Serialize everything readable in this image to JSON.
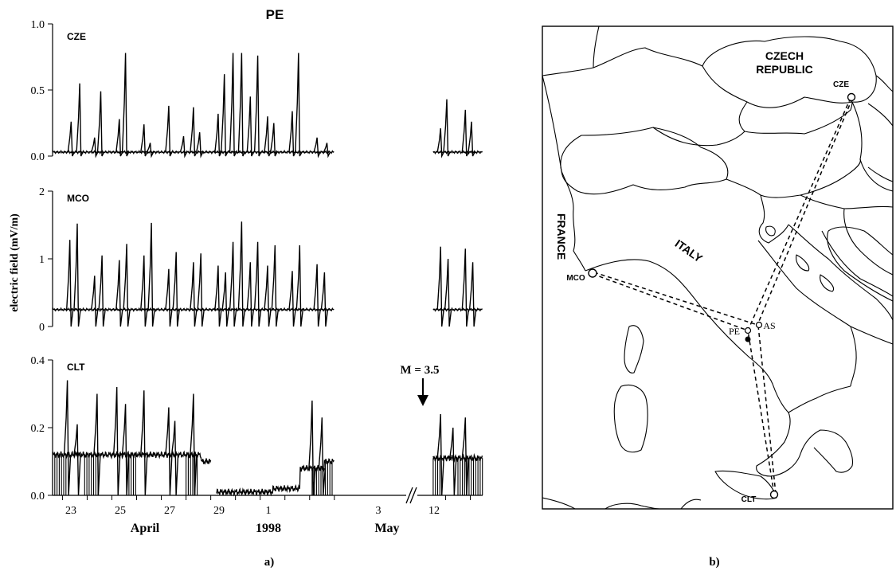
{
  "figure": {
    "panel_a_label": "a)",
    "panel_b_label": "b)"
  },
  "chart_data": [
    {
      "type": "line",
      "title": "PE",
      "ylabel": "electric field (mV/m)",
      "panels": [
        {
          "station": "CZE",
          "ylim": [
            0,
            1.0
          ],
          "ytick_labels": [
            "0.0",
            "0.5",
            "1.0"
          ],
          "baseline": 0.03,
          "spikes": [
            {
              "day": 23.35,
              "value": 0.26
            },
            {
              "day": 23.7,
              "value": 0.55
            },
            {
              "day": 24.3,
              "value": 0.14
            },
            {
              "day": 24.55,
              "value": 0.49
            },
            {
              "day": 25.3,
              "value": 0.28
            },
            {
              "day": 25.55,
              "value": 0.78
            },
            {
              "day": 26.3,
              "value": 0.24
            },
            {
              "day": 26.55,
              "value": 0.1
            },
            {
              "day": 27.3,
              "value": 0.38
            },
            {
              "day": 27.9,
              "value": 0.15
            },
            {
              "day": 28.3,
              "value": 0.37
            },
            {
              "day": 28.55,
              "value": 0.18
            },
            {
              "day": 29.3,
              "value": 0.32
            },
            {
              "day": 29.55,
              "value": 0.62
            },
            {
              "day": 29.9,
              "value": 0.78
            },
            {
              "day": 30.25,
              "value": 0.78
            },
            {
              "day": 30.6,
              "value": 0.45
            },
            {
              "day": 30.9,
              "value": 0.76
            },
            {
              "day": 31.3,
              "value": 0.3
            },
            {
              "day": 31.55,
              "value": 0.25
            },
            {
              "day": 32.3,
              "value": 0.34
            },
            {
              "day": 32.55,
              "value": 0.78
            },
            {
              "day": 33.3,
              "value": 0.14
            },
            {
              "day": 33.7,
              "value": 0.1
            },
            {
              "day": 38.3,
              "value": 0.21
            },
            {
              "day": 38.55,
              "value": 0.43
            },
            {
              "day": 39.3,
              "value": 0.35
            },
            {
              "day": 39.55,
              "value": 0.26
            }
          ]
        },
        {
          "station": "MCO",
          "ylim": [
            0,
            2
          ],
          "ytick_labels": [
            "0",
            "1",
            "2"
          ],
          "baseline": 0.25,
          "spikes": [
            {
              "day": 23.3,
              "value": 1.28
            },
            {
              "day": 23.6,
              "value": 1.52
            },
            {
              "day": 24.3,
              "value": 0.75
            },
            {
              "day": 24.6,
              "value": 1.05
            },
            {
              "day": 25.3,
              "value": 0.98
            },
            {
              "day": 25.6,
              "value": 1.22
            },
            {
              "day": 26.3,
              "value": 1.05
            },
            {
              "day": 26.6,
              "value": 1.53
            },
            {
              "day": 27.3,
              "value": 0.85
            },
            {
              "day": 27.6,
              "value": 1.1
            },
            {
              "day": 28.3,
              "value": 0.95
            },
            {
              "day": 28.6,
              "value": 1.08
            },
            {
              "day": 29.3,
              "value": 0.9
            },
            {
              "day": 29.6,
              "value": 0.8
            },
            {
              "day": 29.9,
              "value": 1.25
            },
            {
              "day": 30.25,
              "value": 1.55
            },
            {
              "day": 30.6,
              "value": 0.95
            },
            {
              "day": 30.9,
              "value": 1.25
            },
            {
              "day": 31.3,
              "value": 0.9
            },
            {
              "day": 31.6,
              "value": 1.2
            },
            {
              "day": 32.3,
              "value": 0.82
            },
            {
              "day": 32.6,
              "value": 1.2
            },
            {
              "day": 33.3,
              "value": 0.92
            },
            {
              "day": 33.6,
              "value": 0.8
            },
            {
              "day": 38.3,
              "value": 1.18
            },
            {
              "day": 38.6,
              "value": 1.0
            },
            {
              "day": 39.3,
              "value": 1.15
            },
            {
              "day": 39.6,
              "value": 0.95
            }
          ]
        },
        {
          "station": "CLT",
          "ylim": [
            0,
            0.4
          ],
          "ytick_labels": [
            "0.0",
            "0.2",
            "0.4"
          ],
          "annotation": "M = 3.5",
          "annotation_day": 11.7,
          "levels": [
            {
              "from_day": 22.6,
              "to_day": 28.6,
              "value": 0.12
            },
            {
              "from_day": 28.6,
              "to_day": 29.0,
              "value": 0.1
            },
            {
              "from_day": 29.2,
              "to_day": 31.5,
              "value": 0.01
            },
            {
              "from_day": 31.5,
              "to_day": 32.6,
              "value": 0.02
            },
            {
              "from_day": 32.6,
              "to_day": 33.6,
              "value": 0.08
            },
            {
              "from_day": 33.6,
              "to_day": 34.0,
              "value": 0.1
            },
            {
              "from_day": 38.0,
              "to_day": 40.0,
              "value": 0.11
            }
          ],
          "spikes": [
            {
              "day": 23.2,
              "value": 0.34
            },
            {
              "day": 23.6,
              "value": 0.21
            },
            {
              "day": 24.4,
              "value": 0.3
            },
            {
              "day": 25.2,
              "value": 0.32
            },
            {
              "day": 25.55,
              "value": 0.27
            },
            {
              "day": 26.3,
              "value": 0.31
            },
            {
              "day": 27.3,
              "value": 0.26
            },
            {
              "day": 27.55,
              "value": 0.22
            },
            {
              "day": 28.3,
              "value": 0.3
            },
            {
              "day": 33.1,
              "value": 0.28
            },
            {
              "day": 33.5,
              "value": 0.23
            },
            {
              "day": 38.3,
              "value": 0.24
            },
            {
              "day": 38.8,
              "value": 0.2
            },
            {
              "day": 39.3,
              "value": 0.23
            }
          ]
        }
      ],
      "x_axis": {
        "tick_labels": [
          {
            "day": 23,
            "label": "23"
          },
          {
            "day": 25,
            "label": "25"
          },
          {
            "day": 27,
            "label": "27"
          },
          {
            "day": 29,
            "label": "29"
          },
          {
            "day": 31,
            "label": "1"
          },
          {
            "day": 33,
            "label": "3"
          },
          {
            "day": 38.5,
            "label": "12"
          }
        ],
        "month_labels": [
          "April",
          "1998",
          "May"
        ],
        "break_note": "axis broken between 4 May and 11 May",
        "range_days": [
          22.6,
          40.0
        ]
      }
    }
  ],
  "map": {
    "country_labels": [
      "CZECH",
      "REPUBLIC",
      "FRANCE",
      "ITALY"
    ],
    "stations": [
      "CZE",
      "MCO",
      "PE",
      "AS",
      "CLT"
    ]
  }
}
